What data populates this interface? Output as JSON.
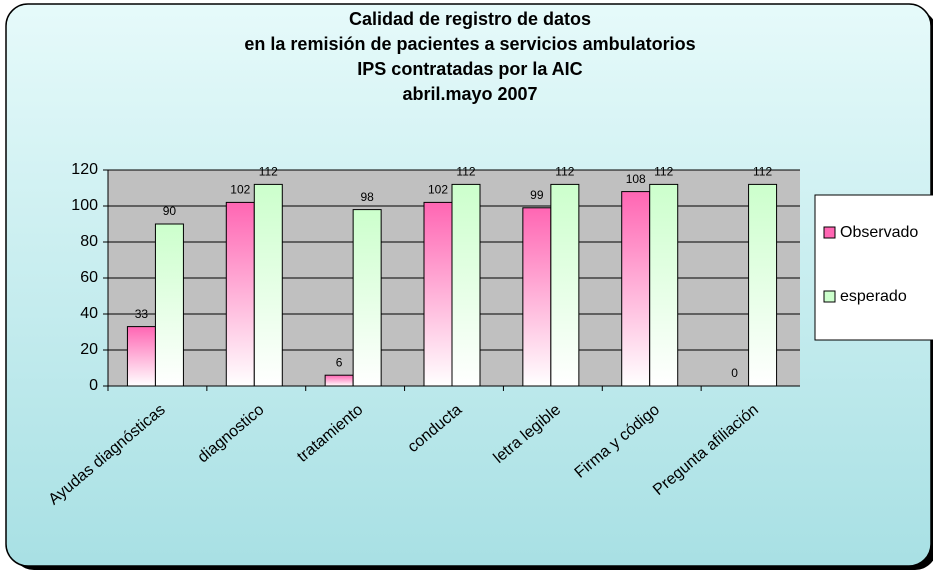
{
  "chart_data": {
    "type": "bar",
    "title": [
      "Calidad de registro de datos",
      "en la remisión de pacientes a servicios ambulatorios",
      "IPS contratadas por la AIC",
      "abril.mayo 2007"
    ],
    "categories": [
      "Ayudas diagnósticas",
      "diagnostico",
      "tratamiento",
      "conducta",
      "letra legible",
      "Firma y código",
      "Pregunta afiliación"
    ],
    "series": [
      {
        "name": "Observado",
        "color": "#ff66b3",
        "values": [
          33,
          102,
          6,
          102,
          99,
          108,
          0
        ]
      },
      {
        "name": "esperado",
        "color": "#ccffcc",
        "values": [
          90,
          112,
          98,
          112,
          112,
          112,
          112
        ]
      }
    ],
    "ylim": [
      0,
      120
    ],
    "yticks": [
      0,
      20,
      40,
      60,
      80,
      100,
      120
    ],
    "grid": true,
    "legend": "right"
  }
}
